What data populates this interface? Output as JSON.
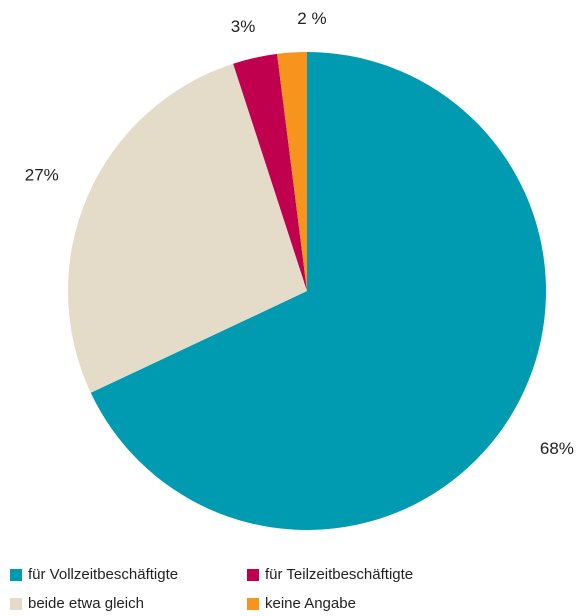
{
  "chart_data": {
    "type": "pie",
    "categories": [
      "für Vollzeitbeschäftigte",
      "beide etwa gleich",
      "für Teilzeitbeschäftigte",
      "keine Angabe"
    ],
    "values": [
      68,
      27,
      3,
      2
    ],
    "value_labels": [
      "68%",
      "27%",
      "3%",
      "2 %"
    ],
    "colors": [
      "#009bb0",
      "#e4dbc8",
      "#c0004f",
      "#f7941d"
    ]
  }
}
